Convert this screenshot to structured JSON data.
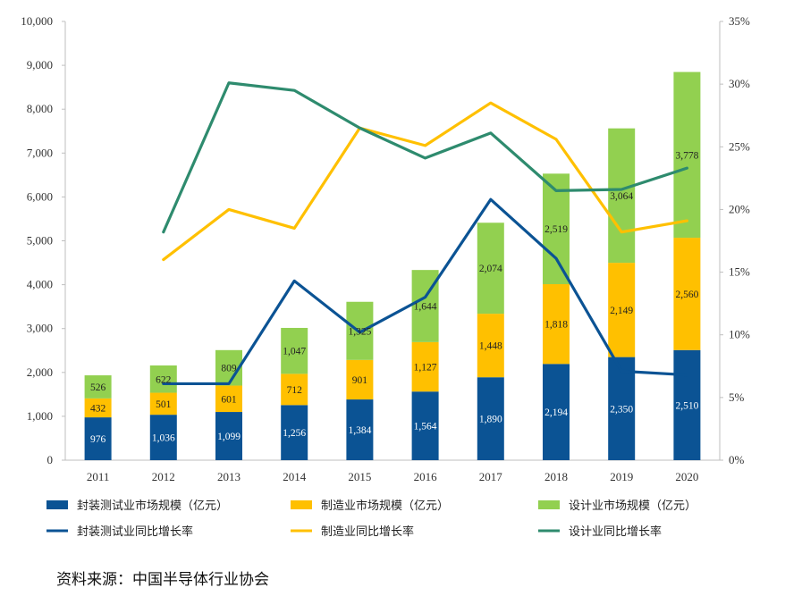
{
  "chart_data": {
    "type": "bar",
    "categories": [
      "2011",
      "2012",
      "2013",
      "2014",
      "2015",
      "2016",
      "2017",
      "2018",
      "2019",
      "2020"
    ],
    "y_left": {
      "lim": [
        0,
        10000
      ],
      "ticks": [
        "0",
        "1,000",
        "2,000",
        "3,000",
        "4,000",
        "5,000",
        "6,000",
        "7,000",
        "8,000",
        "9,000",
        "10,000"
      ]
    },
    "y_right": {
      "lim": [
        0,
        35
      ],
      "ticks": [
        "0%",
        "5%",
        "10%",
        "15%",
        "20%",
        "25%",
        "30%",
        "35%"
      ]
    },
    "bar_series": [
      {
        "name": "封装测试业市场规模（亿元）",
        "color": "#0b5394",
        "values": [
          976,
          1036,
          1099,
          1256,
          1384,
          1564,
          1890,
          2194,
          2350,
          2510
        ],
        "labels": [
          "976",
          "1,036",
          "1,099",
          "1,256",
          "1,384",
          "1,564",
          "1,890",
          "2,194",
          "2,350",
          "2,510"
        ]
      },
      {
        "name": "制造业市场规模（亿元）",
        "color": "#ffc000",
        "values": [
          432,
          501,
          601,
          712,
          901,
          1127,
          1448,
          1818,
          2149,
          2560
        ],
        "labels": [
          "432",
          "501",
          "601",
          "712",
          "901",
          "1,127",
          "1,448",
          "1,818",
          "2,149",
          "2,560"
        ]
      },
      {
        "name": "设计业市场规模（亿元）",
        "color": "#92d050",
        "values": [
          526,
          622,
          809,
          1047,
          1325,
          1644,
          2074,
          2519,
          3064,
          3778
        ],
        "labels": [
          "526",
          "622",
          "809",
          "1,047",
          "1,325",
          "1,644",
          "2,074",
          "2,519",
          "3,064",
          "3,778"
        ]
      }
    ],
    "line_series": [
      {
        "name": "封装测试业同比增长率",
        "color": "#0b5394",
        "values": [
          null,
          6.1,
          6.1,
          14.3,
          10.2,
          13.0,
          20.8,
          16.1,
          7.1,
          6.8
        ]
      },
      {
        "name": "制造业同比增长率",
        "color": "#ffc000",
        "values": [
          null,
          16.0,
          20.0,
          18.5,
          26.5,
          25.1,
          28.5,
          25.6,
          18.2,
          19.1
        ]
      },
      {
        "name": "设计业同比增长率",
        "color": "#2e8b6e",
        "values": [
          null,
          18.2,
          30.1,
          29.5,
          26.5,
          24.1,
          26.1,
          21.5,
          21.6,
          23.3
        ]
      }
    ]
  },
  "source_text": "资料来源：中国半导体行业协会"
}
